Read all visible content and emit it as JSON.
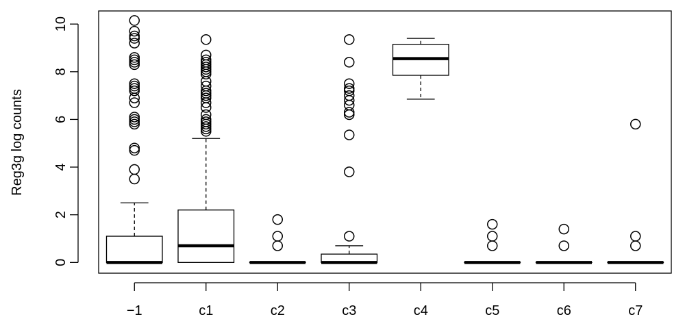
{
  "chart_data": {
    "type": "box",
    "title": "",
    "xlabel": "",
    "ylabel": "Reg3g log counts",
    "ylim": [
      -0.45,
      10.55
    ],
    "y_ticks": [
      0,
      2,
      4,
      6,
      8,
      10
    ],
    "y_tick_labels": [
      "0",
      "2",
      "4",
      "6",
      "8",
      "10"
    ],
    "categories": [
      "−1",
      "c1",
      "c2",
      "c3",
      "c4",
      "c5",
      "c6",
      "c7"
    ],
    "boxes": [
      {
        "min": 0,
        "q1": 0,
        "median": 0,
        "q3": 1.1,
        "max": 2.5,
        "outliers": [
          3.5,
          3.9,
          4.7,
          4.8,
          5.8,
          5.9,
          6.0,
          6.1,
          6.7,
          6.9,
          7.2,
          7.3,
          7.4,
          7.5,
          8.3,
          8.4,
          8.5,
          8.6,
          9.2,
          9.4,
          9.5,
          9.7,
          10.15
        ]
      },
      {
        "min": 0,
        "q1": 0,
        "median": 0.7,
        "q3": 2.2,
        "max": 5.2,
        "outliers": [
          5.5,
          5.6,
          5.7,
          5.8,
          5.9,
          6.0,
          6.2,
          6.5,
          6.7,
          6.9,
          7.0,
          7.1,
          7.2,
          7.4,
          7.6,
          7.9,
          8.0,
          8.1,
          8.2,
          8.3,
          8.4,
          8.5,
          8.7,
          9.35
        ]
      },
      {
        "min": 0,
        "q1": 0,
        "median": 0,
        "q3": 0,
        "max": 0,
        "outliers": [
          0.7,
          1.1,
          1.8
        ]
      },
      {
        "min": 0,
        "q1": 0,
        "median": 0,
        "q3": 0.35,
        "max": 0.7,
        "outliers": [
          1.1,
          3.8,
          5.35,
          6.2,
          6.3,
          6.6,
          6.8,
          7.0,
          7.2,
          7.3,
          7.5,
          8.4,
          9.35
        ]
      },
      {
        "min": 6.85,
        "q1": 7.85,
        "median": 8.55,
        "q3": 9.15,
        "max": 9.4,
        "outliers": []
      },
      {
        "min": 0,
        "q1": 0,
        "median": 0,
        "q3": 0,
        "max": 0,
        "outliers": [
          0.7,
          1.1,
          1.6
        ]
      },
      {
        "min": 0,
        "q1": 0,
        "median": 0,
        "q3": 0,
        "max": 0,
        "outliers": [
          0.7,
          1.4
        ]
      },
      {
        "min": 0,
        "q1": 0,
        "median": 0,
        "q3": 0,
        "max": 0,
        "outliers": [
          0.7,
          1.1,
          5.8
        ]
      }
    ],
    "grid": false,
    "legend": "none"
  }
}
